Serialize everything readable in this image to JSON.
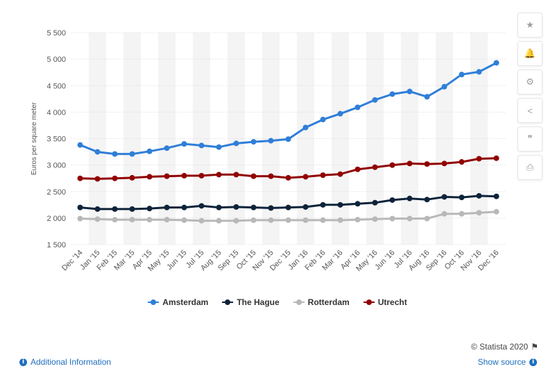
{
  "chart_data": {
    "type": "line",
    "title": "",
    "xlabel": "",
    "ylabel": "Euros per square meter",
    "ylim": [
      1500,
      5500
    ],
    "yticks": [
      1500,
      2000,
      2500,
      3000,
      3500,
      4000,
      4500,
      5000,
      5500
    ],
    "ytick_labels": [
      "1 500",
      "2 000",
      "2 500",
      "3 000",
      "3 500",
      "4 000",
      "4 500",
      "5 000",
      "5 500"
    ],
    "grid": true,
    "legend_position": "bottom",
    "categories": [
      "Dec '14",
      "Jan '15",
      "Feb '15",
      "Mar '15",
      "Apr '15",
      "May '15",
      "Jun '15",
      "Jul '15",
      "Aug '15",
      "Sep '15",
      "Oct '15",
      "Nov '15",
      "Dec '15",
      "Jan '16",
      "Feb '16",
      "Mar '16",
      "Apr '16",
      "May '16",
      "Jun '16",
      "Jul '16",
      "Aug '16",
      "Sep '16",
      "Oct '16",
      "Nov '16",
      "Dec '16"
    ],
    "series": [
      {
        "name": "Amsterdam",
        "color": "#2f7ed8",
        "values": [
          3380,
          3250,
          3210,
          3210,
          3260,
          3320,
          3400,
          3370,
          3340,
          3410,
          3440,
          3460,
          3490,
          3710,
          3860,
          3970,
          4090,
          4230,
          4340,
          4390,
          4290,
          4480,
          4710,
          4760,
          4930
        ]
      },
      {
        "name": "The Hague",
        "color": "#0d233a",
        "values": [
          2200,
          2170,
          2170,
          2170,
          2180,
          2200,
          2200,
          2230,
          2200,
          2210,
          2200,
          2190,
          2200,
          2210,
          2250,
          2250,
          2270,
          2290,
          2340,
          2370,
          2350,
          2400,
          2390,
          2420,
          2410
        ]
      },
      {
        "name": "Rotterdam",
        "color": "#b8b8b8",
        "values": [
          1990,
          1980,
          1970,
          1970,
          1970,
          1970,
          1960,
          1950,
          1950,
          1950,
          1960,
          1960,
          1960,
          1960,
          1960,
          1960,
          1970,
          1980,
          1990,
          1990,
          1990,
          2080,
          2080,
          2100,
          2120
        ]
      },
      {
        "name": "Utrecht",
        "color": "#910000",
        "values": [
          2750,
          2740,
          2750,
          2760,
          2780,
          2790,
          2800,
          2800,
          2820,
          2820,
          2790,
          2790,
          2760,
          2780,
          2810,
          2830,
          2920,
          2960,
          3000,
          3030,
          3020,
          3030,
          3060,
          3120,
          3130
        ]
      }
    ]
  },
  "sidebar": {
    "buttons": [
      {
        "name": "star",
        "glyph": "★"
      },
      {
        "name": "bell",
        "glyph": "🔔"
      },
      {
        "name": "gear",
        "glyph": "⚙"
      },
      {
        "name": "share",
        "glyph": "<"
      },
      {
        "name": "quote",
        "glyph": "❞"
      },
      {
        "name": "print",
        "glyph": "⎙"
      }
    ]
  },
  "footer": {
    "copyright": "© Statista 2020",
    "flag_glyph": "⚑",
    "additional_info": "Additional Information",
    "show_source": "Show source",
    "info_glyph": "i"
  }
}
